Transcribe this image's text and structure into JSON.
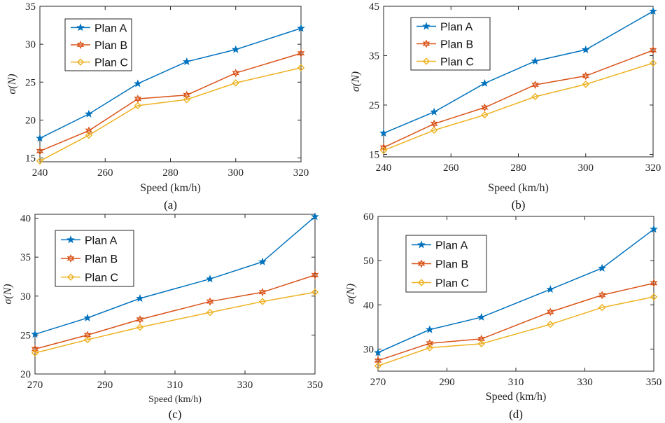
{
  "chart_data": [
    {
      "type": "line",
      "panel": "(a)",
      "xlabel": "Speed (km/h)",
      "ylabel": "σ(N)",
      "xlim": [
        240,
        320
      ],
      "ylim": [
        14.5,
        35
      ],
      "xticks": [
        240,
        260,
        280,
        300,
        320
      ],
      "yticks": [
        15,
        20,
        25,
        30,
        35
      ],
      "x": [
        240,
        255,
        270,
        285,
        300,
        320
      ],
      "legend_position": "top-left",
      "series": [
        {
          "name": "Plan A",
          "marker": "star",
          "color": "#0072BD",
          "values": [
            17.6,
            20.8,
            24.8,
            27.7,
            29.3,
            32.1
          ]
        },
        {
          "name": "Plan B",
          "marker": "hexagram",
          "color": "#D95319",
          "values": [
            15.9,
            18.6,
            22.8,
            23.3,
            26.2,
            28.8
          ]
        },
        {
          "name": "Plan C",
          "marker": "diamond",
          "color": "#EDB120",
          "values": [
            14.6,
            18.0,
            21.9,
            22.7,
            24.9,
            26.9
          ]
        }
      ]
    },
    {
      "type": "line",
      "panel": "(b)",
      "xlabel": "Speed (km/h)",
      "ylabel": "σ(N)",
      "xlim": [
        240,
        320
      ],
      "ylim": [
        14.5,
        45
      ],
      "xticks": [
        240,
        260,
        280,
        300,
        320
      ],
      "yticks": [
        15,
        25,
        35,
        45
      ],
      "x": [
        240,
        255,
        270,
        285,
        300,
        320
      ],
      "legend_position": "top-left",
      "series": [
        {
          "name": "Plan A",
          "marker": "star",
          "color": "#0072BD",
          "values": [
            19.3,
            23.6,
            29.4,
            33.9,
            36.2,
            44.0
          ]
        },
        {
          "name": "Plan B",
          "marker": "hexagram",
          "color": "#D95319",
          "values": [
            16.4,
            21.2,
            24.5,
            29.1,
            30.9,
            36.1
          ]
        },
        {
          "name": "Plan C",
          "marker": "diamond",
          "color": "#EDB120",
          "values": [
            15.8,
            19.9,
            23.0,
            26.7,
            29.2,
            33.5
          ]
        }
      ]
    },
    {
      "type": "line",
      "panel": "(c)",
      "xlabel": "Speed (km/h)",
      "ylabel": "σ(N)",
      "xlim": [
        270,
        350
      ],
      "ylim": [
        20,
        40.5
      ],
      "xticks": [
        270,
        290,
        310,
        330,
        350
      ],
      "yticks": [
        20,
        25,
        30,
        35,
        40
      ],
      "x": [
        270,
        285,
        300,
        320,
        335,
        350
      ],
      "legend_position": "top-left",
      "series": [
        {
          "name": "Plan A",
          "marker": "star",
          "color": "#0072BD",
          "values": [
            25.1,
            27.2,
            29.7,
            32.2,
            34.4,
            40.2
          ]
        },
        {
          "name": "Plan B",
          "marker": "hexagram",
          "color": "#D95319",
          "values": [
            23.2,
            25.0,
            27.0,
            29.3,
            30.5,
            32.7
          ]
        },
        {
          "name": "Plan C",
          "marker": "diamond",
          "color": "#EDB120",
          "values": [
            22.7,
            24.4,
            26.0,
            27.9,
            29.3,
            30.5
          ]
        }
      ]
    },
    {
      "type": "line",
      "panel": "(d)",
      "xlabel": "Speed (km/h)",
      "ylabel": "σ(N)",
      "xlim": [
        270,
        350
      ],
      "ylim": [
        25,
        60
      ],
      "xticks": [
        270,
        290,
        310,
        330,
        350
      ],
      "yticks": [
        30,
        40,
        50,
        60
      ],
      "x": [
        270,
        285,
        300,
        320,
        335,
        350
      ],
      "legend_position": "top-left",
      "series": [
        {
          "name": "Plan A",
          "marker": "star",
          "color": "#0072BD",
          "values": [
            29.2,
            34.4,
            37.2,
            43.5,
            48.3,
            57.1
          ]
        },
        {
          "name": "Plan B",
          "marker": "hexagram",
          "color": "#D95319",
          "values": [
            27.4,
            31.3,
            32.3,
            38.4,
            42.2,
            44.9
          ]
        },
        {
          "name": "Plan C",
          "marker": "diamond",
          "color": "#EDB120",
          "values": [
            26.2,
            30.3,
            31.2,
            35.6,
            39.4,
            41.8
          ]
        }
      ]
    }
  ]
}
